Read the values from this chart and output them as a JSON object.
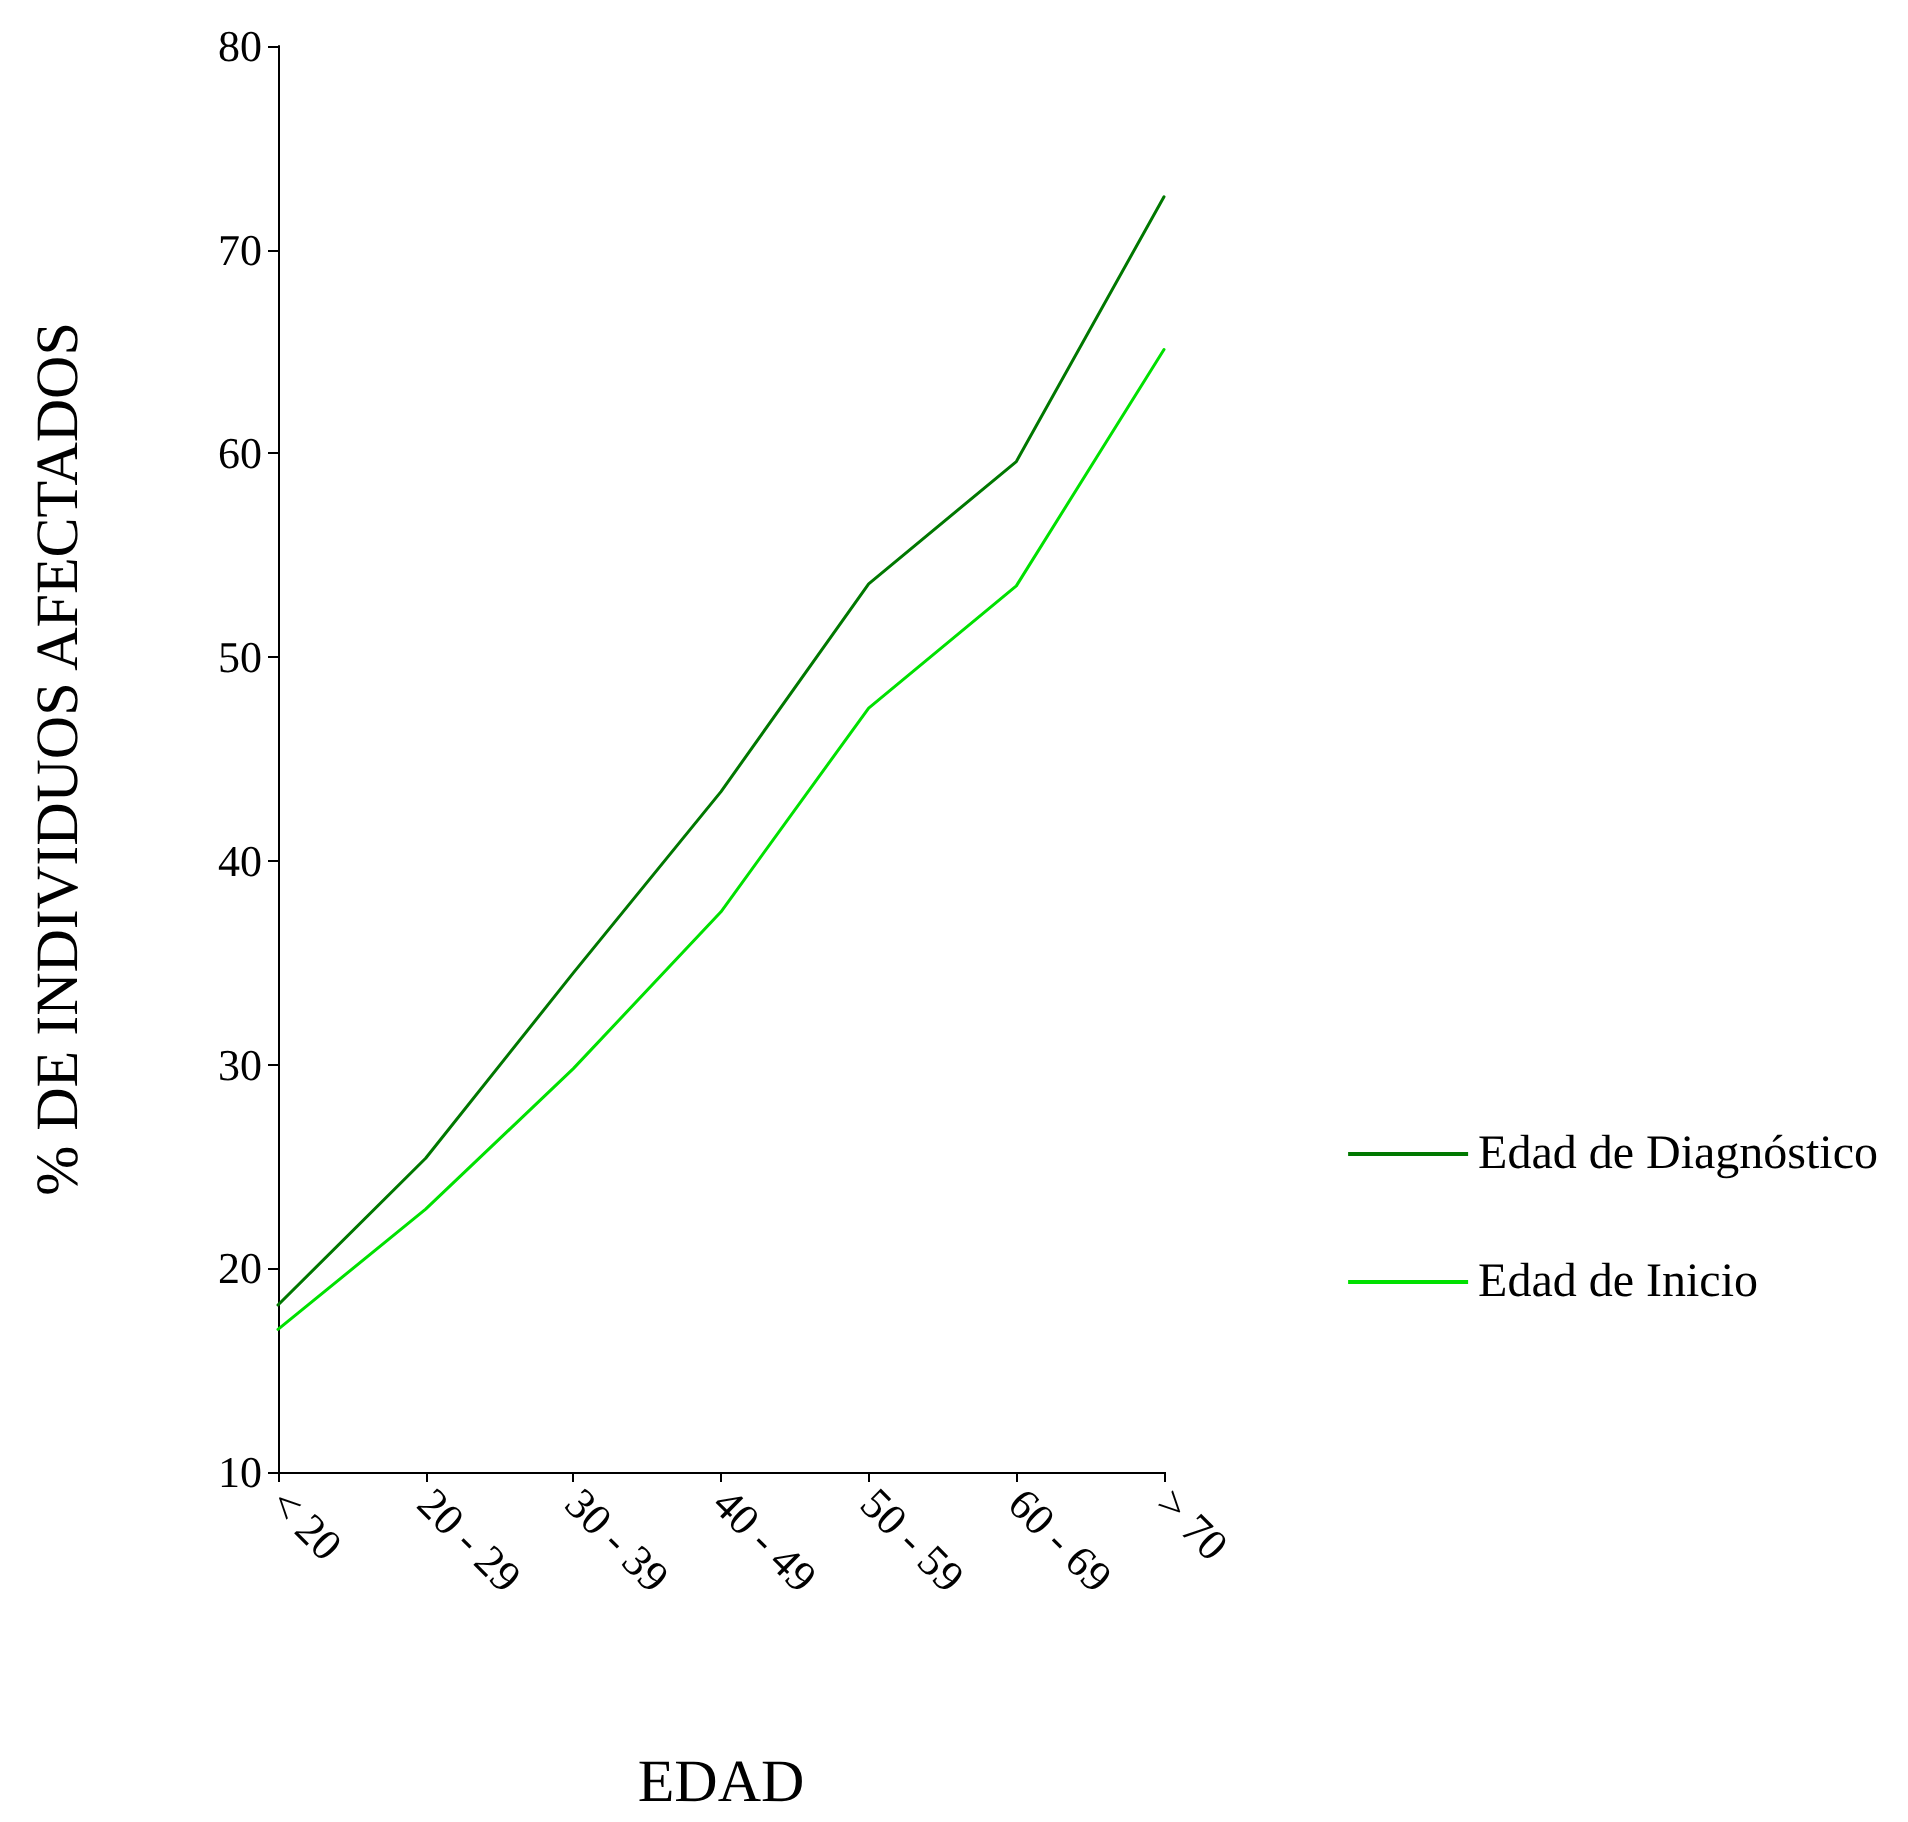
{
  "chart_data": {
    "type": "line",
    "xlabel": "EDAD",
    "ylabel": "% DE INDIVIDUOS AFECTADOS",
    "categories": [
      "< 20",
      "20 - 29",
      "30 - 39",
      "40 - 49",
      "50 - 59",
      "60 - 69",
      "> 70"
    ],
    "series": [
      {
        "name": "Edad de Diagnóstico",
        "color": "#007800",
        "values": [
          18.2,
          25.4,
          34.5,
          43.4,
          53.6,
          59.6,
          72.6
        ]
      },
      {
        "name": "Edad de Inicio",
        "color": "#00e000",
        "values": [
          17.0,
          22.9,
          29.8,
          37.5,
          47.5,
          53.5,
          65.1
        ]
      }
    ],
    "ylim": [
      10,
      80
    ],
    "yticks": [
      10,
      20,
      30,
      40,
      50,
      60,
      70,
      80
    ],
    "grid": false,
    "legend": "right",
    "marker": "none",
    "line_style": "solid"
  }
}
